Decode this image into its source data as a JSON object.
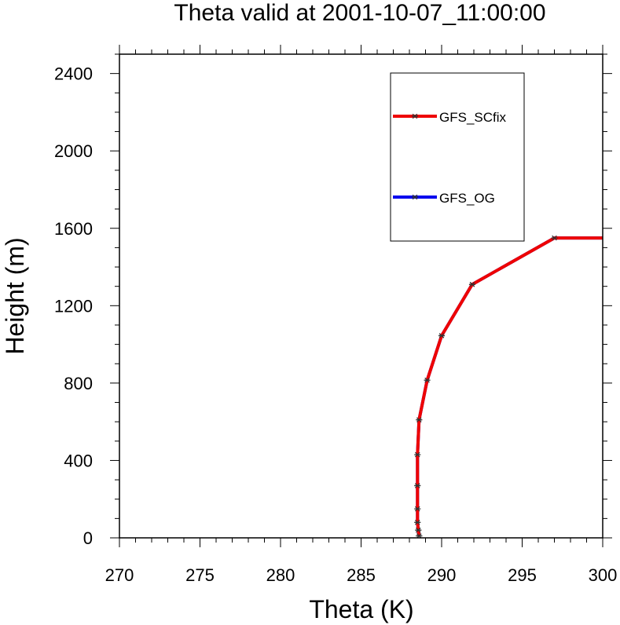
{
  "chart_data": {
    "type": "line",
    "title": "Theta valid at 2001-10-07_11:00:00",
    "xlabel": "Theta (K)",
    "ylabel": "Height (m)",
    "xlim": [
      270,
      300
    ],
    "ylim": [
      0,
      2500
    ],
    "xticks": [
      270,
      275,
      280,
      285,
      290,
      295,
      300
    ],
    "yticks": [
      0,
      400,
      800,
      1200,
      1600,
      2000,
      2400
    ],
    "grid": false,
    "legend_position": "top-right",
    "series": [
      {
        "name": "GFS_SCfix",
        "color": "#ee0000",
        "marker": "asterisk",
        "x": [
          288.6,
          288.55,
          288.5,
          288.5,
          288.5,
          288.5,
          288.6,
          289.1,
          290.0,
          291.9,
          297.0,
          300.0
        ],
        "y": [
          10,
          40,
          80,
          150,
          270,
          430,
          610,
          815,
          1045,
          1310,
          1550,
          1550
        ]
      },
      {
        "name": "GFS_OG",
        "color": "#0000ee",
        "marker": "asterisk",
        "x": [
          288.6,
          288.55,
          288.5,
          288.5,
          288.5,
          288.5,
          288.6,
          289.1,
          290.0,
          291.9,
          297.0,
          300.0
        ],
        "y": [
          10,
          40,
          80,
          150,
          270,
          430,
          610,
          815,
          1045,
          1310,
          1550,
          1550
        ]
      }
    ]
  }
}
